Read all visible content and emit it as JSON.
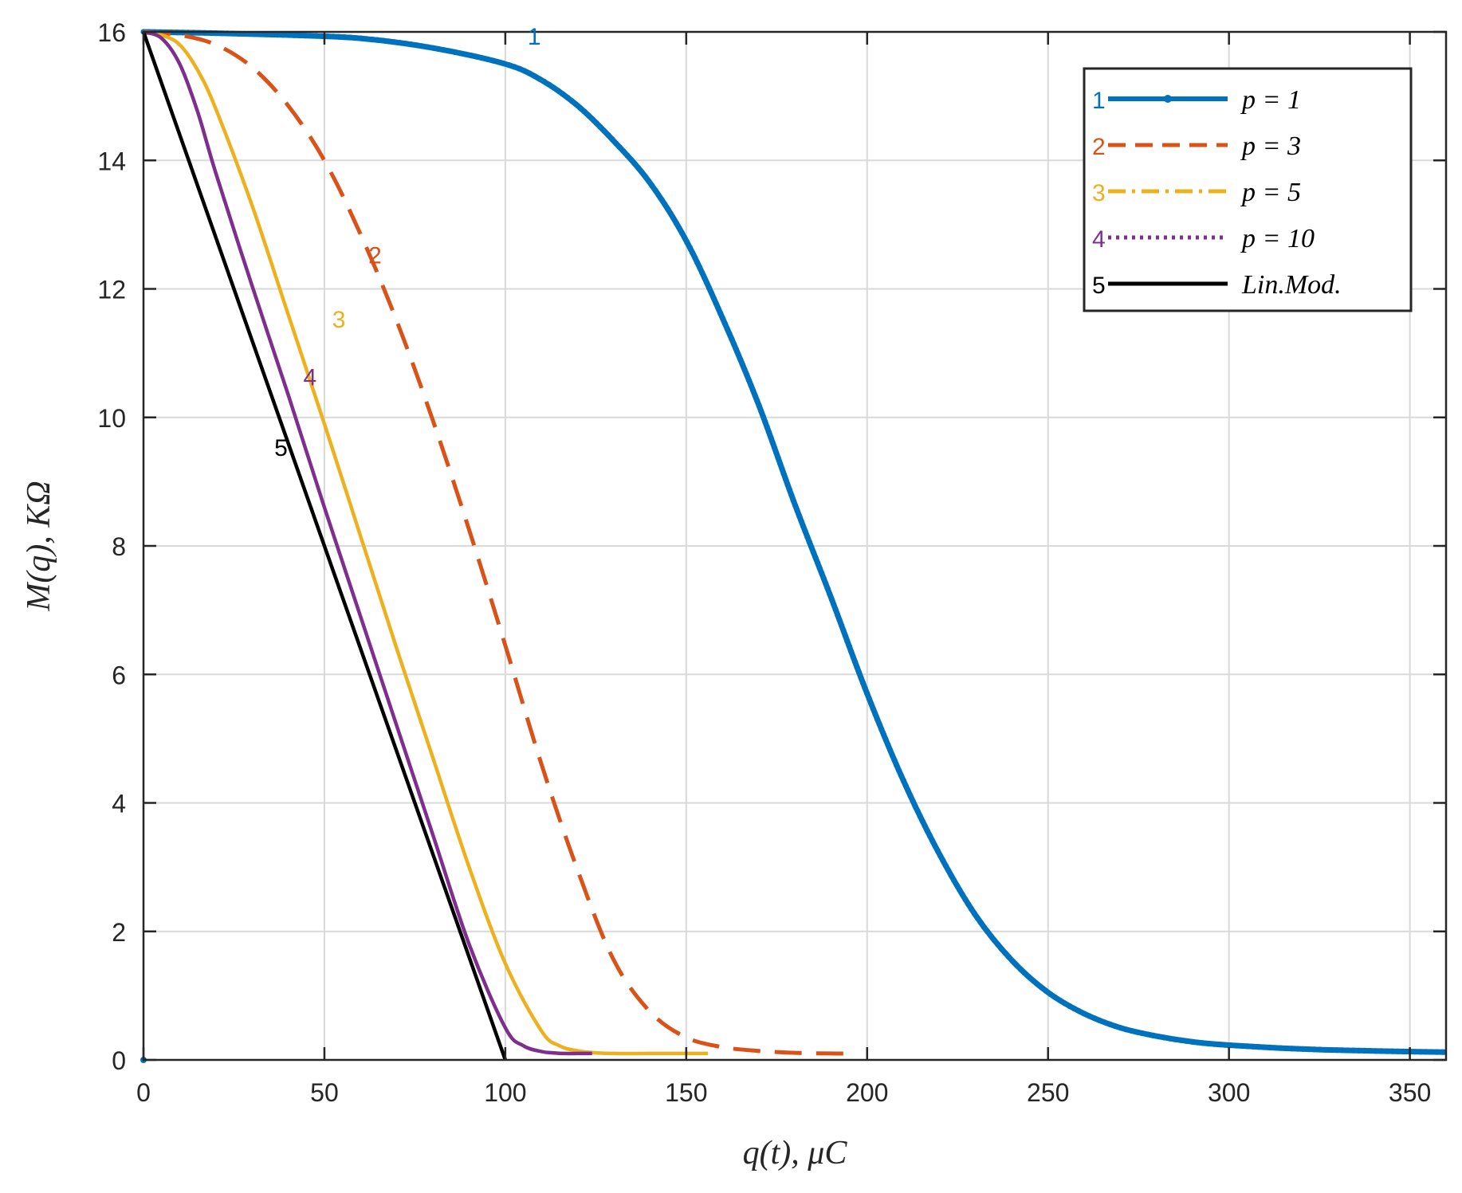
{
  "chart_data": {
    "type": "line",
    "xlabel": "q(t),  μC",
    "ylabel": "M(q),  KΩ",
    "xlim": [
      0,
      360
    ],
    "ylim": [
      0,
      16
    ],
    "xticks": [
      0,
      50,
      100,
      150,
      200,
      250,
      300,
      350
    ],
    "yticks": [
      0,
      2,
      4,
      6,
      8,
      10,
      12,
      14,
      16
    ],
    "grid": true,
    "legend_position": "top-right",
    "series": [
      {
        "id": "1",
        "name": "p = 1",
        "color": "#0072BD",
        "style": "solid-dots",
        "label_at": [
          108,
          15.8
        ],
        "x": [
          0,
          20,
          40,
          60,
          80,
          100,
          110,
          120,
          130,
          140,
          150,
          160,
          170,
          180,
          190,
          200,
          210,
          220,
          230,
          240,
          250,
          260,
          270,
          280,
          290,
          300,
          320,
          340,
          360
        ],
        "y": [
          16,
          15.98,
          15.95,
          15.9,
          15.75,
          15.5,
          15.25,
          14.85,
          14.3,
          13.65,
          12.75,
          11.55,
          10.2,
          8.65,
          7.2,
          5.7,
          4.35,
          3.2,
          2.25,
          1.55,
          1.05,
          0.72,
          0.5,
          0.37,
          0.28,
          0.23,
          0.17,
          0.14,
          0.12
        ]
      },
      {
        "id": "2",
        "name": "p = 3",
        "color": "#D95319",
        "style": "dashed",
        "label_at": [
          64,
          12.4
        ],
        "x": [
          0,
          10,
          20,
          30,
          40,
          50,
          60,
          70,
          80,
          90,
          100,
          110,
          120,
          130,
          140,
          150,
          160,
          170,
          180,
          190,
          195
        ],
        "y": [
          16,
          15.95,
          15.8,
          15.45,
          14.85,
          14.0,
          12.85,
          11.5,
          9.95,
          8.25,
          6.45,
          4.6,
          2.95,
          1.55,
          0.75,
          0.35,
          0.2,
          0.14,
          0.11,
          0.1,
          0.1
        ]
      },
      {
        "id": "3",
        "name": "p = 5",
        "color": "#EDB120",
        "style": "dash-dot",
        "label_at": [
          54,
          11.4
        ],
        "x": [
          0,
          5,
          10,
          15,
          20,
          30,
          40,
          50,
          60,
          70,
          80,
          90,
          100,
          110,
          115,
          120,
          125,
          130,
          140,
          150,
          156
        ],
        "y": [
          16,
          15.95,
          15.8,
          15.4,
          14.8,
          13.3,
          11.6,
          9.9,
          8.15,
          6.4,
          4.7,
          3.0,
          1.5,
          0.45,
          0.22,
          0.14,
          0.11,
          0.1,
          0.1,
          0.1,
          0.1
        ]
      },
      {
        "id": "4",
        "name": "p = 10",
        "color": "#7E2F8E",
        "style": "dotted",
        "label_at": [
          46,
          10.5
        ],
        "x": [
          0,
          5,
          10,
          15,
          20,
          30,
          40,
          50,
          60,
          70,
          80,
          90,
          100,
          105,
          110,
          113,
          116,
          120,
          124
        ],
        "y": [
          16,
          15.9,
          15.5,
          14.75,
          13.8,
          12.05,
          10.35,
          8.6,
          6.9,
          5.2,
          3.5,
          1.8,
          0.5,
          0.22,
          0.13,
          0.11,
          0.1,
          0.1,
          0.1
        ]
      },
      {
        "id": "5",
        "name": "Lin.Mod.",
        "color": "#000000",
        "style": "solid",
        "label_at": [
          38,
          9.4
        ],
        "x": [
          0,
          100
        ],
        "y": [
          16,
          0
        ]
      }
    ]
  }
}
